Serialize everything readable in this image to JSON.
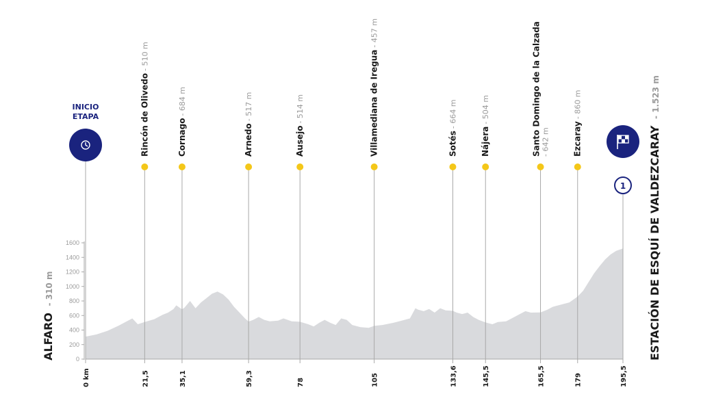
{
  "chart_data": {
    "type": "area",
    "xlabel": "",
    "ylabel": "",
    "xlim": [
      0,
      195.5
    ],
    "ylim": [
      0,
      1600
    ],
    "y_ticks": [
      0,
      200,
      400,
      600,
      800,
      1000,
      1200,
      1400,
      1600
    ],
    "x_ticks": [
      "0 km",
      "21,5",
      "35,1",
      "59,3",
      "78",
      "105",
      "133,6",
      "145,5",
      "165,5",
      "179",
      "195,5"
    ],
    "x_tick_values": [
      0,
      21.5,
      35.1,
      59.3,
      78,
      105,
      133.6,
      145.5,
      165.5,
      179,
      195.5
    ],
    "profile": {
      "x": [
        0,
        4,
        8,
        12,
        15,
        17,
        19,
        21.5,
        25,
        28,
        30,
        32,
        33,
        35.1,
        36,
        38,
        40,
        42,
        44,
        46,
        48,
        50,
        52,
        54,
        56,
        58,
        59.3,
        61,
        63,
        65,
        67,
        70,
        72,
        75,
        78,
        81,
        83,
        85,
        87,
        89,
        91,
        93,
        95,
        97,
        100,
        103,
        105,
        108,
        112,
        115,
        118,
        120,
        121,
        123,
        125,
        127,
        129,
        131,
        133.6,
        135,
        137,
        139,
        141,
        143,
        145.5,
        148,
        150,
        153,
        155,
        158,
        160,
        162,
        165.5,
        168,
        170,
        172,
        174,
        176,
        179,
        181,
        183,
        185,
        187,
        189,
        191,
        193,
        195.5
      ],
      "y": [
        310,
        340,
        390,
        460,
        520,
        560,
        480,
        510,
        550,
        610,
        640,
        690,
        740,
        684,
        710,
        800,
        700,
        780,
        840,
        900,
        930,
        890,
        820,
        720,
        640,
        560,
        517,
        540,
        580,
        540,
        520,
        530,
        560,
        520,
        514,
        480,
        450,
        500,
        540,
        500,
        470,
        560,
        540,
        470,
        440,
        430,
        457,
        470,
        500,
        530,
        560,
        700,
        680,
        660,
        690,
        640,
        700,
        670,
        664,
        640,
        620,
        640,
        580,
        540,
        504,
        480,
        510,
        520,
        560,
        620,
        660,
        640,
        642,
        680,
        720,
        740,
        760,
        780,
        860,
        940,
        1060,
        1180,
        1280,
        1370,
        1440,
        1490,
        1523
      ]
    },
    "start": {
      "name": "ALFARO",
      "altitude": "- 310 m",
      "badge_line1": "INICIO",
      "badge_line2": "ETAPA"
    },
    "finish": {
      "name": "ESTACIÓN DE ESQUÍ DE VALDEZCARAY",
      "altitude": "- 1.523 m",
      "category": "1"
    },
    "points": [
      {
        "km": 21.5,
        "name": "Rincón de Olivedo",
        "altitude": "- 510 m",
        "label_len": 210
      },
      {
        "km": 35.1,
        "name": "Cornago",
        "altitude": "- 684 m",
        "label_len": 130
      },
      {
        "km": 59.3,
        "name": "Arnedo",
        "altitude": "- 517 m",
        "label_len": 125
      },
      {
        "km": 78,
        "name": "Ausejo",
        "altitude": "- 514 m",
        "label_len": 120
      },
      {
        "km": 105,
        "name": "Villamediana de Iregua",
        "altitude": "- 457 m",
        "label_len": 230
      },
      {
        "km": 133.6,
        "name": "Sotés",
        "altitude": "- 664 m",
        "label_len": 110
      },
      {
        "km": 145.5,
        "name": "Nájera",
        "altitude": "- 504 m",
        "label_len": 115
      },
      {
        "km": 165.5,
        "name": "Santo Domingo de la Calzada",
        "altitude": "- 642 m",
        "label_len": 200,
        "two_lines": true
      },
      {
        "km": 179,
        "name": "Ezcaray",
        "altitude": "- 860 m",
        "label_len": 120
      }
    ],
    "colors": {
      "area": "#d9dadd",
      "line": "#a8a8a8",
      "dot": "#f4c719",
      "navy": "#1a237e",
      "text": "#1a1a1a",
      "muted": "#9a9a9a"
    }
  }
}
